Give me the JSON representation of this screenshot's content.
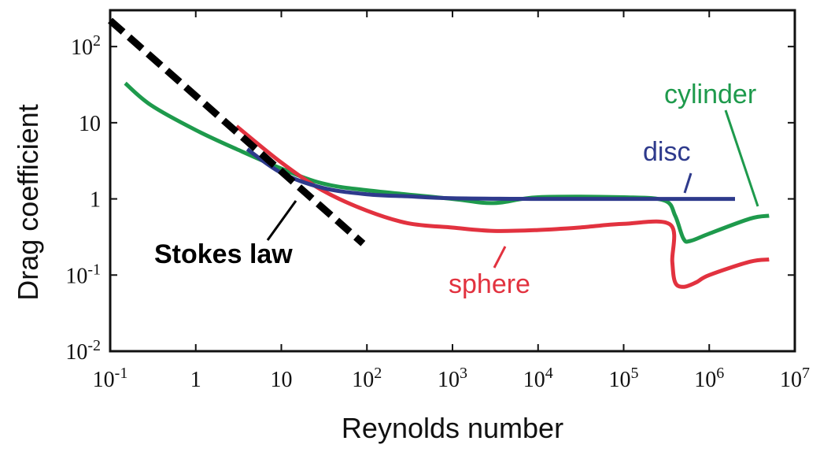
{
  "chart_data": {
    "type": "line",
    "title": "",
    "xlabel": "Reynolds number",
    "ylabel": "Drag coefficient",
    "x_scale": "log",
    "y_scale": "log",
    "xlim": [
      0.1,
      10000000
    ],
    "ylim": [
      0.01,
      300
    ],
    "grid": false,
    "x_ticks": [
      {
        "value": 0.1,
        "base": "10",
        "exp": "-1"
      },
      {
        "value": 1,
        "base": "1",
        "exp": ""
      },
      {
        "value": 10,
        "base": "10",
        "exp": ""
      },
      {
        "value": 100,
        "base": "10",
        "exp": "2"
      },
      {
        "value": 1000,
        "base": "10",
        "exp": "3"
      },
      {
        "value": 10000,
        "base": "10",
        "exp": "4"
      },
      {
        "value": 100000,
        "base": "10",
        "exp": "5"
      },
      {
        "value": 1000000,
        "base": "10",
        "exp": "6"
      },
      {
        "value": 10000000,
        "base": "10",
        "exp": "7"
      }
    ],
    "y_ticks": [
      {
        "value": 0.01,
        "base": "10",
        "exp": "-2"
      },
      {
        "value": 0.1,
        "base": "10",
        "exp": "-1"
      },
      {
        "value": 1,
        "base": "1",
        "exp": ""
      },
      {
        "value": 10,
        "base": "10",
        "exp": ""
      },
      {
        "value": 100,
        "base": "10",
        "exp": "2"
      }
    ],
    "series": [
      {
        "name": "Stokes law",
        "color": "#000000",
        "style": "dashed",
        "x": [
          0.1,
          90
        ],
        "y": [
          220,
          0.26
        ]
      },
      {
        "name": "cylinder",
        "color": "#1e9a4c",
        "x": [
          0.15,
          0.3,
          1,
          3,
          10,
          30,
          100,
          1000,
          3000,
          10000,
          100000,
          300000,
          400000,
          500000,
          600000,
          1000000,
          3000000,
          5000000
        ],
        "y": [
          33,
          17,
          8,
          4.5,
          2.5,
          1.6,
          1.3,
          1.0,
          0.88,
          1.05,
          1.05,
          0.95,
          0.6,
          0.3,
          0.28,
          0.35,
          0.55,
          0.6
        ]
      },
      {
        "name": "sphere",
        "color": "#e2323f",
        "x": [
          3,
          10,
          30,
          100,
          300,
          1000,
          3000,
          10000,
          30000,
          100000,
          350000,
          370000,
          400000,
          500000,
          700000,
          1000000,
          3000000,
          5000000
        ],
        "y": [
          9,
          3,
          1.3,
          0.7,
          0.48,
          0.42,
          0.38,
          0.39,
          0.42,
          0.47,
          0.46,
          0.15,
          0.08,
          0.07,
          0.08,
          0.1,
          0.15,
          0.16
        ]
      },
      {
        "name": "disc",
        "color": "#2e3a8c",
        "x": [
          4,
          10,
          30,
          100,
          300,
          1000,
          10000,
          100000,
          1000000,
          2000000
        ],
        "y": [
          4.5,
          2.2,
          1.4,
          1.15,
          1.08,
          1.02,
          1.0,
          1.0,
          1.0,
          1.0
        ]
      }
    ],
    "annotations": {
      "cylinder": "cylinder",
      "disc": "disc",
      "sphere": "sphere",
      "stokes": "Stokes law"
    }
  }
}
